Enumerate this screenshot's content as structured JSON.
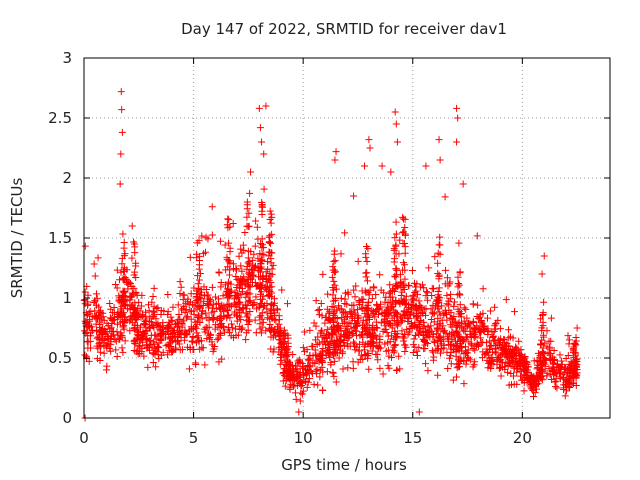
{
  "chart_data": {
    "type": "scatter",
    "title": "Day 147 of 2022, SRMTID for receiver dav1",
    "xlabel": "GPS time / hours",
    "ylabel": "SRMTID / TECUs",
    "xlim": [
      0,
      24
    ],
    "ylim": [
      0,
      3
    ],
    "x_ticks": [
      0,
      5,
      10,
      15,
      20
    ],
    "y_ticks": [
      0,
      0.5,
      1,
      1.5,
      2,
      2.5,
      3
    ],
    "grid": true,
    "marker": "plus",
    "color": "#ff0000",
    "envelope": {
      "x": [
        0.0,
        0.5,
        1.0,
        1.5,
        2.0,
        2.5,
        3.0,
        3.5,
        4.0,
        4.5,
        5.0,
        5.5,
        6.0,
        6.5,
        7.0,
        7.5,
        8.0,
        8.5,
        9.0,
        9.5,
        10.0,
        10.5,
        11.0,
        11.5,
        12.0,
        12.5,
        13.0,
        13.5,
        14.0,
        14.5,
        15.0,
        15.5,
        16.0,
        16.5,
        17.0,
        17.5,
        18.0,
        18.5,
        19.0,
        19.5,
        20.0,
        20.5,
        21.0,
        21.5,
        22.0,
        22.5
      ],
      "center": [
        0.75,
        0.8,
        0.65,
        0.8,
        1.0,
        0.75,
        0.7,
        0.7,
        0.7,
        0.75,
        0.8,
        0.85,
        0.8,
        0.95,
        1.0,
        1.1,
        1.05,
        1.0,
        0.6,
        0.35,
        0.35,
        0.55,
        0.6,
        0.7,
        0.75,
        0.8,
        0.75,
        0.75,
        0.8,
        0.9,
        0.85,
        0.75,
        0.75,
        0.85,
        0.65,
        0.6,
        0.75,
        0.6,
        0.55,
        0.5,
        0.45,
        0.25,
        0.55,
        0.4,
        0.35,
        0.4
      ],
      "spread": [
        0.4,
        0.35,
        0.3,
        0.35,
        0.45,
        0.35,
        0.35,
        0.3,
        0.3,
        0.35,
        0.4,
        0.45,
        0.4,
        0.45,
        0.45,
        0.5,
        0.55,
        0.5,
        0.3,
        0.25,
        0.25,
        0.35,
        0.4,
        0.45,
        0.45,
        0.45,
        0.45,
        0.45,
        0.45,
        0.5,
        0.45,
        0.4,
        0.4,
        0.5,
        0.4,
        0.35,
        0.35,
        0.3,
        0.25,
        0.25,
        0.2,
        0.12,
        0.3,
        0.2,
        0.18,
        0.18
      ]
    },
    "outliers": [
      {
        "x": 0.05,
        "y": 0.0
      },
      {
        "x": 1.7,
        "y": 2.72
      },
      {
        "x": 1.72,
        "y": 2.57
      },
      {
        "x": 1.75,
        "y": 2.38
      },
      {
        "x": 1.68,
        "y": 2.2
      },
      {
        "x": 1.65,
        "y": 1.95
      },
      {
        "x": 2.2,
        "y": 1.6
      },
      {
        "x": 2.3,
        "y": 1.45
      },
      {
        "x": 8.0,
        "y": 2.58
      },
      {
        "x": 8.3,
        "y": 2.6
      },
      {
        "x": 8.05,
        "y": 2.42
      },
      {
        "x": 8.1,
        "y": 2.3
      },
      {
        "x": 8.2,
        "y": 2.2
      },
      {
        "x": 7.6,
        "y": 2.05
      },
      {
        "x": 11.5,
        "y": 2.22
      },
      {
        "x": 11.45,
        "y": 2.15
      },
      {
        "x": 12.3,
        "y": 1.85
      },
      {
        "x": 12.8,
        "y": 2.1
      },
      {
        "x": 13.0,
        "y": 2.32
      },
      {
        "x": 13.05,
        "y": 2.25
      },
      {
        "x": 13.6,
        "y": 2.1
      },
      {
        "x": 14.2,
        "y": 2.55
      },
      {
        "x": 14.25,
        "y": 2.45
      },
      {
        "x": 14.3,
        "y": 2.3
      },
      {
        "x": 14.0,
        "y": 2.05
      },
      {
        "x": 15.6,
        "y": 2.1
      },
      {
        "x": 16.2,
        "y": 2.32
      },
      {
        "x": 16.25,
        "y": 2.15
      },
      {
        "x": 17.0,
        "y": 2.58
      },
      {
        "x": 17.05,
        "y": 2.5
      },
      {
        "x": 17.0,
        "y": 2.3
      },
      {
        "x": 17.3,
        "y": 1.95
      },
      {
        "x": 15.3,
        "y": 0.05
      },
      {
        "x": 9.8,
        "y": 0.05
      },
      {
        "x": 20.9,
        "y": 1.2
      },
      {
        "x": 21.0,
        "y": 1.35
      },
      {
        "x": 22.5,
        "y": 0.75
      }
    ],
    "seed": 147
  }
}
